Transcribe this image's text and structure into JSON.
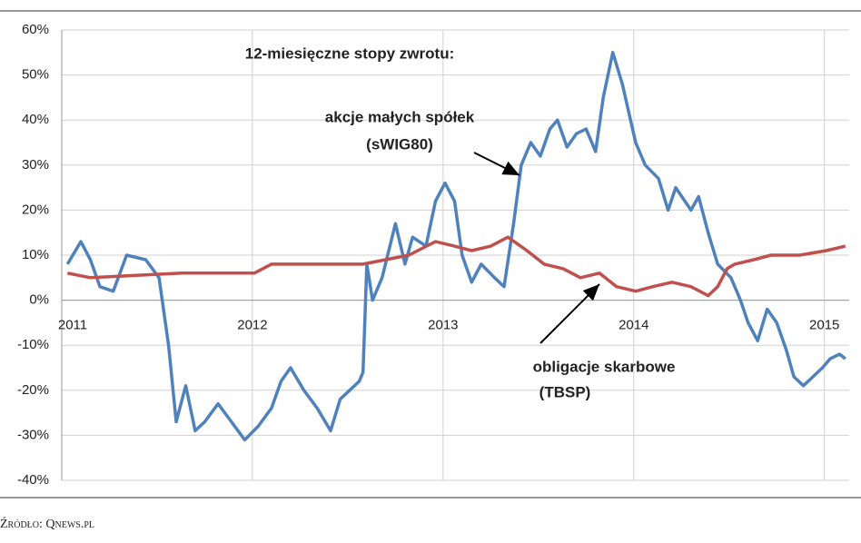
{
  "chart_data": {
    "type": "line",
    "title": "12-miesięczne stopy zwrotu:",
    "annotations": [
      "akcje małych spółek",
      "(sWIG80)",
      "obligacje skarbowe",
      "(TBSP)"
    ],
    "source": "Źródło: Qnews.pl",
    "xlim": [
      2011,
      2015.13
    ],
    "xticks": [
      2011,
      2012,
      2013,
      2014,
      2015
    ],
    "ylim": [
      -40,
      60
    ],
    "yticks": [
      {
        "value": -40,
        "label": "-40%"
      },
      {
        "value": -30,
        "label": "-30%"
      },
      {
        "value": -20,
        "label": "-20%"
      },
      {
        "value": -10,
        "label": "-10%"
      },
      {
        "value": 0,
        "label": "0%"
      },
      {
        "value": 10,
        "label": "10%"
      },
      {
        "value": 20,
        "label": "20%"
      },
      {
        "value": 30,
        "label": "30%"
      },
      {
        "value": 40,
        "label": "40%"
      },
      {
        "value": 50,
        "label": "50%"
      },
      {
        "value": 60,
        "label": "60%"
      }
    ],
    "grid": true,
    "series": [
      {
        "name": "akcje małych spółek (sWIG80)",
        "color": "#4f81bd",
        "x": [
          2011.03,
          2011.1,
          2011.15,
          2011.2,
          2011.27,
          2011.34,
          2011.44,
          2011.51,
          2011.56,
          2011.6,
          2011.65,
          2011.7,
          2011.75,
          2011.82,
          2011.89,
          2011.96,
          2012.03,
          2012.1,
          2012.15,
          2012.2,
          2012.27,
          2012.34,
          2012.41,
          2012.46,
          2012.56,
          2012.58,
          2012.6,
          2012.63,
          2012.68,
          2012.75,
          2012.8,
          2012.84,
          2012.91,
          2012.96,
          2013.01,
          2013.06,
          2013.1,
          2013.15,
          2013.2,
          2013.27,
          2013.32,
          2013.37,
          2013.41,
          2013.46,
          2013.51,
          2013.56,
          2013.6,
          2013.65,
          2013.7,
          2013.75,
          2013.8,
          2013.84,
          2013.89,
          2013.94,
          2014.01,
          2014.06,
          2014.13,
          2014.18,
          2014.22,
          2014.3,
          2014.34,
          2014.39,
          2014.44,
          2014.51,
          2014.56,
          2014.6,
          2014.65,
          2014.7,
          2014.75,
          2014.8,
          2014.84,
          2014.89,
          2014.94,
          2014.99,
          2015.03,
          2015.08,
          2015.11
        ],
        "values": [
          8,
          13,
          9,
          3,
          2,
          10,
          9,
          5,
          -10,
          -27,
          -19,
          -29,
          -27,
          -23,
          -27,
          -31,
          -28,
          -24,
          -18,
          -15,
          -20,
          -24,
          -29,
          -22,
          -18,
          -16,
          8,
          0,
          5,
          17,
          8,
          14,
          12,
          22,
          26,
          22,
          10,
          4,
          8,
          5,
          3,
          17,
          30,
          35,
          32,
          38,
          40,
          34,
          37,
          38,
          33,
          45,
          55,
          48,
          35,
          30,
          27,
          20,
          25,
          20,
          23,
          15,
          8,
          5,
          0,
          -5,
          -9,
          -2,
          -5,
          -11,
          -17,
          -19,
          -17,
          -15,
          -13,
          -12,
          -13
        ]
      },
      {
        "name": "obligacje skarbowe (TBSP)",
        "color": "#c0504d",
        "x": [
          2011.03,
          2011.15,
          2011.39,
          2011.63,
          2011.87,
          2012.01,
          2012.1,
          2012.34,
          2012.58,
          2012.82,
          2012.96,
          2013.06,
          2013.15,
          2013.25,
          2013.34,
          2013.44,
          2013.53,
          2013.63,
          2013.72,
          2013.82,
          2013.91,
          2014.01,
          2014.1,
          2014.2,
          2014.3,
          2014.39,
          2014.44,
          2014.49,
          2014.53,
          2014.63,
          2014.72,
          2014.87,
          2015.01,
          2015.11
        ],
        "values": [
          6,
          5,
          5.5,
          6,
          6,
          6,
          8,
          8,
          8,
          10,
          13,
          12,
          11,
          12,
          14,
          11,
          8,
          7,
          5,
          6,
          3,
          2,
          3,
          4,
          3,
          1,
          3,
          7,
          8,
          9,
          10,
          10,
          11,
          12
        ]
      }
    ]
  }
}
